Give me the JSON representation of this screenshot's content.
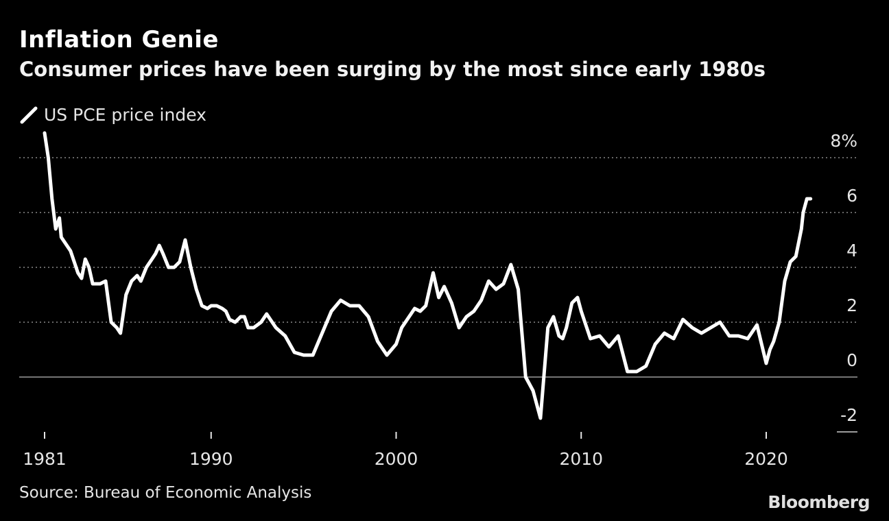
{
  "header": {
    "title": "Inflation Genie",
    "subtitle": "Consumer prices have been surging by the most since early 1980s"
  },
  "footer": {
    "source": "Source: Bureau of Economic Analysis",
    "brand": "Bloomberg"
  },
  "colors": {
    "background": "#000000",
    "line": "#ffffff",
    "grid": "#8a8a8a",
    "text": "#e6e6e6"
  },
  "chart_data": {
    "type": "line",
    "title": "Inflation Genie",
    "subtitle": "Consumer prices have been surging by the most since early 1980s",
    "xlabel": "",
    "ylabel": "",
    "xlim": [
      1981,
      2023
    ],
    "ylim": [
      -2,
      8
    ],
    "x_ticks": [
      1981,
      1990,
      2000,
      2010,
      2020
    ],
    "x_tick_labels": [
      "1981",
      "1990",
      "2000",
      "2010",
      "2020"
    ],
    "y_ticks": [
      8,
      6,
      4,
      2,
      0,
      -2
    ],
    "y_tick_labels": [
      "8%",
      "6",
      "4",
      "2",
      "0",
      "-2"
    ],
    "grid": "horizontal dotted",
    "legend_position": "top-left",
    "series": [
      {
        "name": "US PCE price index",
        "x": [
          1981.0,
          1981.2,
          1981.4,
          1981.6,
          1981.8,
          1981.9,
          1982.2,
          1982.4,
          1982.6,
          1982.8,
          1983.0,
          1983.2,
          1983.4,
          1983.6,
          1983.8,
          1984.0,
          1984.3,
          1984.6,
          1984.9,
          1985.1,
          1985.4,
          1985.7,
          1986.0,
          1986.2,
          1986.5,
          1986.8,
          1987.0,
          1987.2,
          1987.4,
          1987.7,
          1988.0,
          1988.3,
          1988.6,
          1988.9,
          1989.2,
          1989.5,
          1989.8,
          1990.0,
          1990.3,
          1990.6,
          1990.8,
          1991.0,
          1991.3,
          1991.6,
          1991.8,
          1992.0,
          1992.3,
          1992.7,
          1993.0,
          1993.5,
          1994.0,
          1994.5,
          1995.0,
          1995.5,
          1996.0,
          1996.5,
          1997.0,
          1997.5,
          1998.0,
          1998.5,
          1999.0,
          1999.5,
          2000.0,
          2000.3,
          2000.6,
          2001.0,
          2001.3,
          2001.6,
          2002.0,
          2002.3,
          2002.6,
          2003.0,
          2003.4,
          2003.8,
          2004.2,
          2004.6,
          2005.0,
          2005.4,
          2005.8,
          2006.2,
          2006.6,
          2007.0,
          2007.4,
          2007.8,
          2008.2,
          2008.5,
          2008.8,
          2009.0,
          2009.2,
          2009.5,
          2009.8,
          2010.0,
          2010.5,
          2011.0,
          2011.5,
          2012.0,
          2012.5,
          2013.0,
          2013.5,
          2014.0,
          2014.5,
          2015.0,
          2015.5,
          2016.0,
          2016.5,
          2017.0,
          2017.5,
          2018.0,
          2018.5,
          2019.0,
          2019.5,
          2020.0,
          2020.2,
          2020.4,
          2020.7,
          2021.0,
          2021.3,
          2021.6,
          2021.9,
          2022.0,
          2022.2,
          2022.4
        ],
        "values": [
          8.9,
          8.0,
          6.5,
          5.4,
          5.8,
          5.1,
          4.8,
          4.6,
          4.2,
          3.8,
          3.6,
          4.3,
          4.0,
          3.4,
          3.4,
          3.4,
          3.5,
          2.0,
          1.8,
          1.6,
          3.0,
          3.5,
          3.7,
          3.5,
          4.0,
          4.3,
          4.5,
          4.8,
          4.5,
          4.0,
          4.0,
          4.2,
          5.0,
          4.0,
          3.2,
          2.6,
          2.5,
          2.6,
          2.6,
          2.5,
          2.4,
          2.1,
          2.0,
          2.2,
          2.2,
          1.8,
          1.8,
          2.0,
          2.3,
          1.8,
          1.5,
          0.9,
          0.8,
          0.8,
          1.6,
          2.4,
          2.8,
          2.6,
          2.6,
          2.2,
          1.3,
          0.8,
          1.2,
          1.8,
          2.1,
          2.5,
          2.4,
          2.6,
          3.8,
          2.9,
          3.3,
          2.7,
          1.8,
          2.2,
          2.4,
          2.8,
          3.5,
          3.2,
          3.4,
          4.1,
          3.2,
          0.0,
          -0.5,
          -1.5,
          1.8,
          2.2,
          1.5,
          1.4,
          1.8,
          2.7,
          2.9,
          2.4,
          1.4,
          1.5,
          1.1,
          1.5,
          0.2,
          0.2,
          0.4,
          1.2,
          1.6,
          1.4,
          2.1,
          1.8,
          1.6,
          1.8,
          2.0,
          1.5,
          1.5,
          1.4,
          1.9,
          0.5,
          1.0,
          1.3,
          2.0,
          3.5,
          4.2,
          4.4,
          5.4,
          6.0,
          6.5,
          6.5
        ],
        "color": "#ffffff"
      }
    ]
  }
}
